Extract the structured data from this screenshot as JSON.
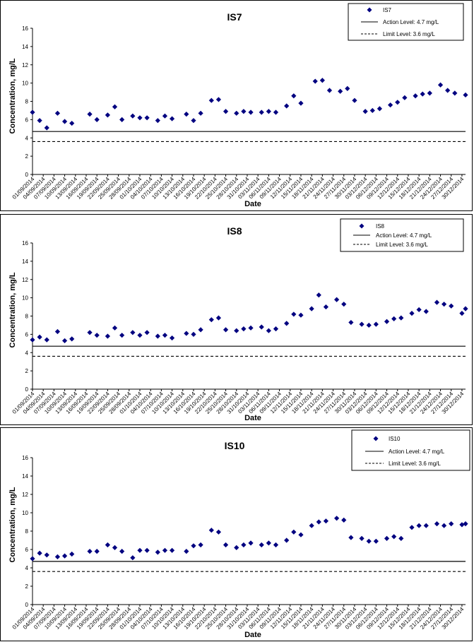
{
  "chart_data": [
    {
      "type": "scatter",
      "title": "IS7",
      "xlabel": "Date",
      "ylabel": "Concentration, mg/L",
      "ylim": [
        0,
        16
      ],
      "yticks": [
        "0",
        "2",
        "4",
        "6",
        "8",
        "10",
        "12",
        "14",
        "16"
      ],
      "xticks": [
        "01/09/2014",
        "04/09/2014",
        "07/09/2014",
        "10/09/2014",
        "13/09/2014",
        "16/09/2014",
        "19/09/2014",
        "22/09/2014",
        "25/09/2014",
        "28/09/2014",
        "01/10/2014",
        "04/10/2014",
        "07/10/2014",
        "10/10/2014",
        "13/10/2014",
        "16/10/2014",
        "19/10/2014",
        "22/10/2014",
        "25/10/2014",
        "28/10/2014",
        "31/10/2014",
        "03/11/2014",
        "06/11/2014",
        "09/11/2014",
        "12/11/2014",
        "15/11/2014",
        "18/11/2014",
        "21/11/2014",
        "24/11/2014",
        "27/11/2014",
        "30/11/2014",
        "03/12/2014",
        "06/12/2014",
        "09/12/2014",
        "12/12/2014",
        "15/12/2014",
        "18/12/2014",
        "21/12/2014",
        "24/12/2014",
        "27/12/2014",
        "30/12/2014"
      ],
      "x_range": [
        "01/09/2014",
        "31/12/2014"
      ],
      "series": [
        {
          "name": "IS7",
          "marker": "diamond",
          "color": "#000080",
          "x": [
            "01/09/2014",
            "03/09/2014",
            "05/09/2014",
            "08/09/2014",
            "10/09/2014",
            "12/09/2014",
            "17/09/2014",
            "19/09/2014",
            "22/09/2014",
            "24/09/2014",
            "26/09/2014",
            "29/09/2014",
            "01/10/2014",
            "03/10/2014",
            "06/10/2014",
            "08/10/2014",
            "10/10/2014",
            "14/10/2014",
            "16/10/2014",
            "18/10/2014",
            "21/10/2014",
            "23/10/2014",
            "25/10/2014",
            "28/10/2014",
            "30/10/2014",
            "01/11/2014",
            "04/11/2014",
            "06/11/2014",
            "08/11/2014",
            "11/11/2014",
            "13/11/2014",
            "15/11/2014",
            "19/11/2014",
            "21/11/2014",
            "23/11/2014",
            "26/11/2014",
            "28/11/2014",
            "30/11/2014",
            "03/12/2014",
            "05/12/2014",
            "07/12/2014",
            "10/12/2014",
            "12/12/2014",
            "14/12/2014",
            "17/12/2014",
            "19/12/2014",
            "21/12/2014",
            "24/12/2014",
            "26/12/2014",
            "28/12/2014",
            "31/12/2014"
          ],
          "y": [
            6.8,
            5.9,
            5.1,
            6.7,
            5.8,
            5.6,
            6.6,
            6.0,
            6.5,
            7.4,
            6.0,
            6.4,
            6.2,
            6.2,
            5.9,
            6.4,
            6.1,
            6.6,
            5.9,
            6.7,
            8.1,
            8.2,
            6.9,
            6.7,
            6.9,
            6.8,
            6.8,
            6.9,
            6.8,
            7.5,
            8.6,
            7.8,
            10.2,
            10.3,
            9.2,
            9.1,
            9.4,
            8.1,
            6.9,
            7.0,
            7.2,
            7.6,
            7.9,
            8.4,
            8.6,
            8.8,
            8.9,
            9.8,
            9.2,
            8.9,
            8.7
          ]
        },
        {
          "name": "Action Level: 4.7 mg/L",
          "line": "solid",
          "y": 4.7
        },
        {
          "name": "Limit Level: 3.6 mg/L",
          "line": "dashed",
          "y": 3.6
        }
      ],
      "legend_position": "top-right",
      "grid": false
    },
    {
      "type": "scatter",
      "title": "IS8",
      "xlabel": "Date",
      "ylabel": "Concentration, mg/L",
      "ylim": [
        0,
        16
      ],
      "yticks": [
        "0",
        "2",
        "4",
        "6",
        "8",
        "10",
        "12",
        "14",
        "16"
      ],
      "xticks": [
        "01/09/2014",
        "04/09/2014",
        "07/09/2014",
        "10/09/2014",
        "13/09/2014",
        "16/09/2014",
        "19/09/2014",
        "22/09/2014",
        "25/09/2014",
        "28/09/2014",
        "01/10/2014",
        "04/10/2014",
        "07/10/2014",
        "10/10/2014",
        "13/10/2014",
        "16/10/2014",
        "19/10/2014",
        "22/10/2014",
        "25/10/2014",
        "28/10/2014",
        "31/10/2014",
        "03/11/2014",
        "06/11/2014",
        "09/11/2014",
        "12/11/2014",
        "15/11/2014",
        "18/11/2014",
        "21/11/2014",
        "24/11/2014",
        "27/11/2014",
        "30/11/2014",
        "03/12/2014",
        "06/12/2014",
        "09/12/2014",
        "12/12/2014",
        "15/12/2014",
        "18/12/2014",
        "21/12/2014",
        "24/12/2014",
        "27/12/2014",
        "30/12/2014"
      ],
      "x_range": [
        "01/09/2014",
        "31/12/2014"
      ],
      "series": [
        {
          "name": "IS8",
          "marker": "diamond",
          "color": "#000080",
          "x": [
            "01/09/2014",
            "03/09/2014",
            "05/09/2014",
            "08/09/2014",
            "10/09/2014",
            "12/09/2014",
            "17/09/2014",
            "19/09/2014",
            "22/09/2014",
            "24/09/2014",
            "26/09/2014",
            "29/09/2014",
            "01/10/2014",
            "03/10/2014",
            "06/10/2014",
            "08/10/2014",
            "10/10/2014",
            "14/10/2014",
            "16/10/2014",
            "18/10/2014",
            "21/10/2014",
            "23/10/2014",
            "25/10/2014",
            "28/10/2014",
            "30/10/2014",
            "01/11/2014",
            "04/11/2014",
            "06/11/2014",
            "08/11/2014",
            "11/11/2014",
            "13/11/2014",
            "15/11/2014",
            "18/11/2014",
            "20/11/2014",
            "22/11/2014",
            "25/11/2014",
            "27/11/2014",
            "29/11/2014",
            "02/12/2014",
            "04/12/2014",
            "06/12/2014",
            "09/12/2014",
            "11/12/2014",
            "13/12/2014",
            "16/12/2014",
            "18/12/2014",
            "20/12/2014",
            "23/12/2014",
            "25/12/2014",
            "27/12/2014",
            "30/12/2014",
            "31/12/2014"
          ],
          "y": [
            5.4,
            5.7,
            5.4,
            6.3,
            5.3,
            5.5,
            6.2,
            5.9,
            5.8,
            6.7,
            5.9,
            6.2,
            5.9,
            6.2,
            5.8,
            5.9,
            5.6,
            6.1,
            6.0,
            6.5,
            7.6,
            7.8,
            6.5,
            6.4,
            6.6,
            6.7,
            6.8,
            6.4,
            6.6,
            7.2,
            8.2,
            8.1,
            8.8,
            10.3,
            9.0,
            9.8,
            9.3,
            7.3,
            7.1,
            7.0,
            7.1,
            7.4,
            7.7,
            7.8,
            8.3,
            8.7,
            8.5,
            9.5,
            9.3,
            9.1,
            8.3,
            8.8
          ]
        },
        {
          "name": "Action Level: 4.7 mg/L",
          "line": "solid",
          "y": 4.7
        },
        {
          "name": "Limit Level: 3.6 mg/L",
          "line": "dashed",
          "y": 3.6
        }
      ],
      "legend_position": "top-right",
      "grid": false
    },
    {
      "type": "scatter",
      "title": "IS10",
      "xlabel": "Date",
      "ylabel": "Concentration, mg/L",
      "ylim": [
        0,
        16
      ],
      "yticks": [
        "0",
        "2",
        "4",
        "6",
        "8",
        "10",
        "12",
        "14",
        "16"
      ],
      "xticks": [
        "01/09/2014",
        "04/09/2014",
        "07/09/2014",
        "10/09/2014",
        "13/09/2014",
        "16/09/2014",
        "19/09/2014",
        "22/09/2014",
        "25/09/2014",
        "28/09/2014",
        "01/10/2014",
        "04/10/2014",
        "07/10/2014",
        "10/10/2014",
        "13/10/2014",
        "16/10/2014",
        "19/10/2014",
        "22/10/2014",
        "25/10/2014",
        "28/10/2014",
        "31/10/2014",
        "03/11/2014",
        "06/11/2014",
        "09/11/2014",
        "12/11/2014",
        "15/11/2014",
        "18/11/2014",
        "21/11/2014",
        "24/11/2014",
        "27/11/2014",
        "30/11/2014",
        "03/12/2014",
        "06/12/2014",
        "09/12/2014",
        "12/12/2014",
        "15/12/2014",
        "18/12/2014",
        "21/12/2014",
        "24/12/2014",
        "27/12/2014",
        "30/12/2014"
      ],
      "x_range": [
        "01/09/2014",
        "31/12/2014"
      ],
      "series": [
        {
          "name": "IS10",
          "marker": "diamond",
          "color": "#000080",
          "x": [
            "01/09/2014",
            "03/09/2014",
            "05/09/2014",
            "08/09/2014",
            "10/09/2014",
            "12/09/2014",
            "17/09/2014",
            "19/09/2014",
            "22/09/2014",
            "24/09/2014",
            "26/09/2014",
            "29/09/2014",
            "01/10/2014",
            "03/10/2014",
            "06/10/2014",
            "08/10/2014",
            "10/10/2014",
            "14/10/2014",
            "16/10/2014",
            "18/10/2014",
            "21/10/2014",
            "23/10/2014",
            "25/10/2014",
            "28/10/2014",
            "30/10/2014",
            "01/11/2014",
            "04/11/2014",
            "06/11/2014",
            "08/11/2014",
            "11/11/2014",
            "13/11/2014",
            "15/11/2014",
            "18/11/2014",
            "20/11/2014",
            "22/11/2014",
            "25/11/2014",
            "27/11/2014",
            "29/11/2014",
            "02/12/2014",
            "04/12/2014",
            "06/12/2014",
            "09/12/2014",
            "11/12/2014",
            "13/12/2014",
            "16/12/2014",
            "18/12/2014",
            "20/12/2014",
            "23/12/2014",
            "25/12/2014",
            "27/12/2014",
            "30/12/2014",
            "31/12/2014"
          ],
          "y": [
            5.0,
            5.6,
            5.4,
            5.2,
            5.3,
            5.5,
            5.8,
            5.8,
            6.5,
            6.2,
            5.8,
            5.1,
            5.9,
            5.9,
            5.7,
            5.9,
            5.9,
            5.8,
            6.4,
            6.5,
            8.1,
            7.9,
            6.5,
            6.2,
            6.5,
            6.7,
            6.5,
            6.7,
            6.5,
            7.0,
            7.9,
            7.6,
            8.6,
            9.0,
            9.1,
            9.4,
            9.2,
            7.3,
            7.2,
            6.9,
            6.9,
            7.2,
            7.4,
            7.2,
            8.4,
            8.6,
            8.6,
            8.8,
            8.6,
            8.8,
            8.7,
            8.8
          ]
        },
        {
          "name": "Action Level: 4.7 mg/L",
          "line": "solid",
          "y": 4.7
        },
        {
          "name": "Limit Level: 3.6 mg/L",
          "line": "dashed",
          "y": 3.6
        }
      ],
      "legend_position": "top-right",
      "grid": false
    }
  ]
}
